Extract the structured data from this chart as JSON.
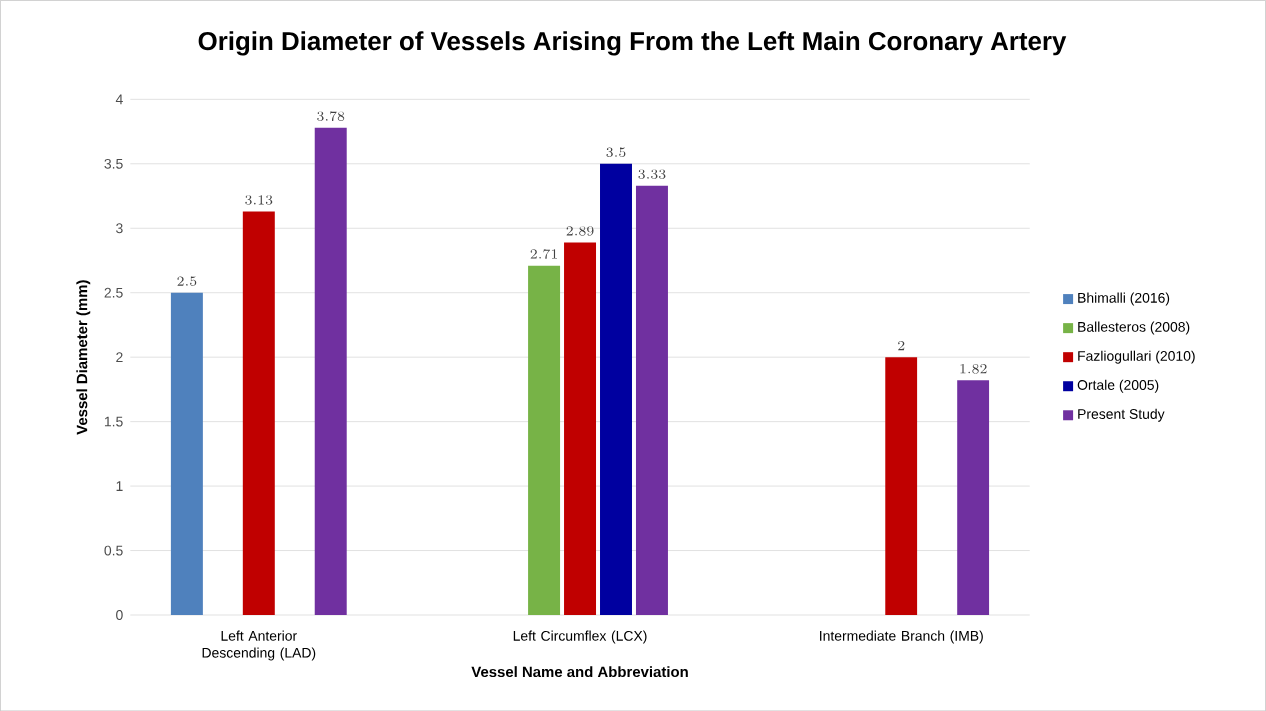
{
  "chart_data": {
    "type": "bar",
    "title": "Origin Diameter of Vessels Arising From the Left Main Coronary Artery",
    "xlabel": "Vessel Name and Abbreviation",
    "ylabel": "Vessel Diameter (mm)",
    "categories": [
      "Left Anterior Descending (LAD)",
      "Left Circumflex (LCX)",
      "Intermediate Branch (IMB)"
    ],
    "series": [
      {
        "name": "Bhimalli (2016)",
        "color": "#4f81bd",
        "values": [
          2.5,
          null,
          null
        ]
      },
      {
        "name": "Ballesteros (2008)",
        "color": "#77b347",
        "values": [
          null,
          2.71,
          null
        ]
      },
      {
        "name": "Fazliogullari (2010)",
        "color": "#c00000",
        "values": [
          3.13,
          2.89,
          2
        ]
      },
      {
        "name": "Ortale (2005)",
        "color": "#0000a0",
        "values": [
          null,
          3.5,
          null
        ]
      },
      {
        "name": "Present  Study",
        "color": "#7030a0",
        "values": [
          3.78,
          3.33,
          1.82
        ]
      }
    ],
    "ylim": [
      0,
      4
    ],
    "yticks": [
      0,
      0.5,
      1,
      1.5,
      2,
      2.5,
      3,
      3.5,
      4
    ],
    "grid": "y",
    "legend": "right",
    "data_labels": true
  }
}
